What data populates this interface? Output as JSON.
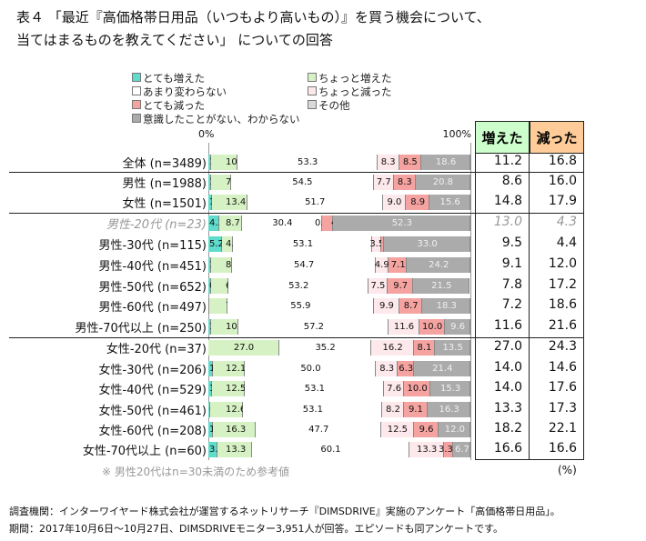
{
  "title_line1": "表４ 「最近『高価格帯日用品（いつもより高いもの）』を買う機会について、",
  "title_line2": "当てはまるものを教えてください」 についての回答",
  "chart_data": {
    "type": "bar",
    "orientation": "horizontal-stacked-100",
    "axis": {
      "min_label": "0%",
      "max_label": "100%",
      "xlim": [
        0,
        100
      ]
    },
    "legend": [
      {
        "name": "とても増えた",
        "color": "#5fdccb"
      },
      {
        "name": "ちょっと増えた",
        "color": "#d6f2c4"
      },
      {
        "name": "あまり変わらない",
        "color": "#ffffff"
      },
      {
        "name": "ちょっと減った",
        "color": "#fde8ec"
      },
      {
        "name": "とても減った",
        "color": "#f5a3a0"
      },
      {
        "name": "その他",
        "color": "#d9d9d9"
      },
      {
        "name": "意識したことがない、わからない",
        "color": "#ababab"
      }
    ],
    "legend_placement": "top",
    "categories": [
      "全体 (n=3489)",
      "男性 (n=1988)",
      "女性 (n=1501)",
      "男性-20代 (n=23)",
      "男性-30代 (n=115)",
      "男性-40代 (n=451)",
      "男性-50代 (n=652)",
      "男性-60代 (n=497)",
      "男性-70代以上 (n=250)",
      "女性-20代 (n=37)",
      "女性-30代 (n=206)",
      "女性-40代 (n=529)",
      "女性-50代 (n=461)",
      "女性-60代 (n=208)",
      "女性-70代以上 (n=60)"
    ],
    "series": [
      {
        "name": "とても増えた",
        "values": [
          1.2,
          1.1,
          1.4,
          4.3,
          5.2,
          1.1,
          0.9,
          0.2,
          1.2,
          0.0,
          1.9,
          1.5,
          0.7,
          1.9,
          3.3
        ]
      },
      {
        "name": "ちょっと増えた",
        "values": [
          10.0,
          7.5,
          13.4,
          8.7,
          4.3,
          8.0,
          6.9,
          7.0,
          10.4,
          27.0,
          12.1,
          12.5,
          12.6,
          16.3,
          13.3
        ]
      },
      {
        "name": "あまり変わらない",
        "values": [
          53.3,
          54.5,
          51.7,
          30.4,
          53.1,
          54.7,
          53.2,
          55.9,
          57.2,
          35.2,
          50.0,
          53.1,
          53.1,
          47.7,
          60.1
        ]
      },
      {
        "name": "ちょっと減った",
        "values": [
          8.3,
          7.7,
          9.0,
          0.0,
          3.5,
          4.9,
          7.5,
          9.9,
          11.6,
          16.2,
          8.3,
          7.6,
          8.2,
          12.5,
          13.3
        ]
      },
      {
        "name": "とても減った",
        "values": [
          8.5,
          8.3,
          8.9,
          4.3,
          0.9,
          7.1,
          9.7,
          8.7,
          10.0,
          8.1,
          6.3,
          10.0,
          9.1,
          9.6,
          3.3
        ]
      },
      {
        "name": "意識したことがない、わからない",
        "values": [
          18.6,
          20.8,
          15.6,
          52.3,
          33.0,
          24.2,
          21.5,
          18.3,
          9.6,
          13.5,
          21.4,
          15.3,
          16.3,
          12.0,
          6.7
        ]
      }
    ],
    "reference_rows": [
      3
    ]
  },
  "table": {
    "headers": [
      "増えた",
      "減った"
    ],
    "header_colors": [
      "#ccffcc",
      "#ffcc99"
    ],
    "increased": [
      "11.2",
      "8.6",
      "14.8",
      "13.0",
      "9.5",
      "9.1",
      "7.8",
      "7.2",
      "11.6",
      "27.0",
      "14.0",
      "14.0",
      "13.3",
      "18.2",
      "16.6"
    ],
    "decreased": [
      "16.8",
      "16.0",
      "17.9",
      "4.3",
      "4.4",
      "12.0",
      "17.2",
      "18.6",
      "21.6",
      "24.3",
      "14.6",
      "17.6",
      "17.3",
      "22.1",
      "16.6"
    ],
    "unit": "(%)"
  },
  "note": "※ 男性20代はn=30未満のため参考値",
  "footer_line1": "調査機関：インターワイヤード株式会社が運営するネットリサーチ『DIMSDRIVE』実施のアンケート「高価格帯日用品」。",
  "footer_line2": "期間：2017年10月6日～10月27日、DIMSDRIVEモニター3,951人が回答。エピソードも同アンケートです。"
}
